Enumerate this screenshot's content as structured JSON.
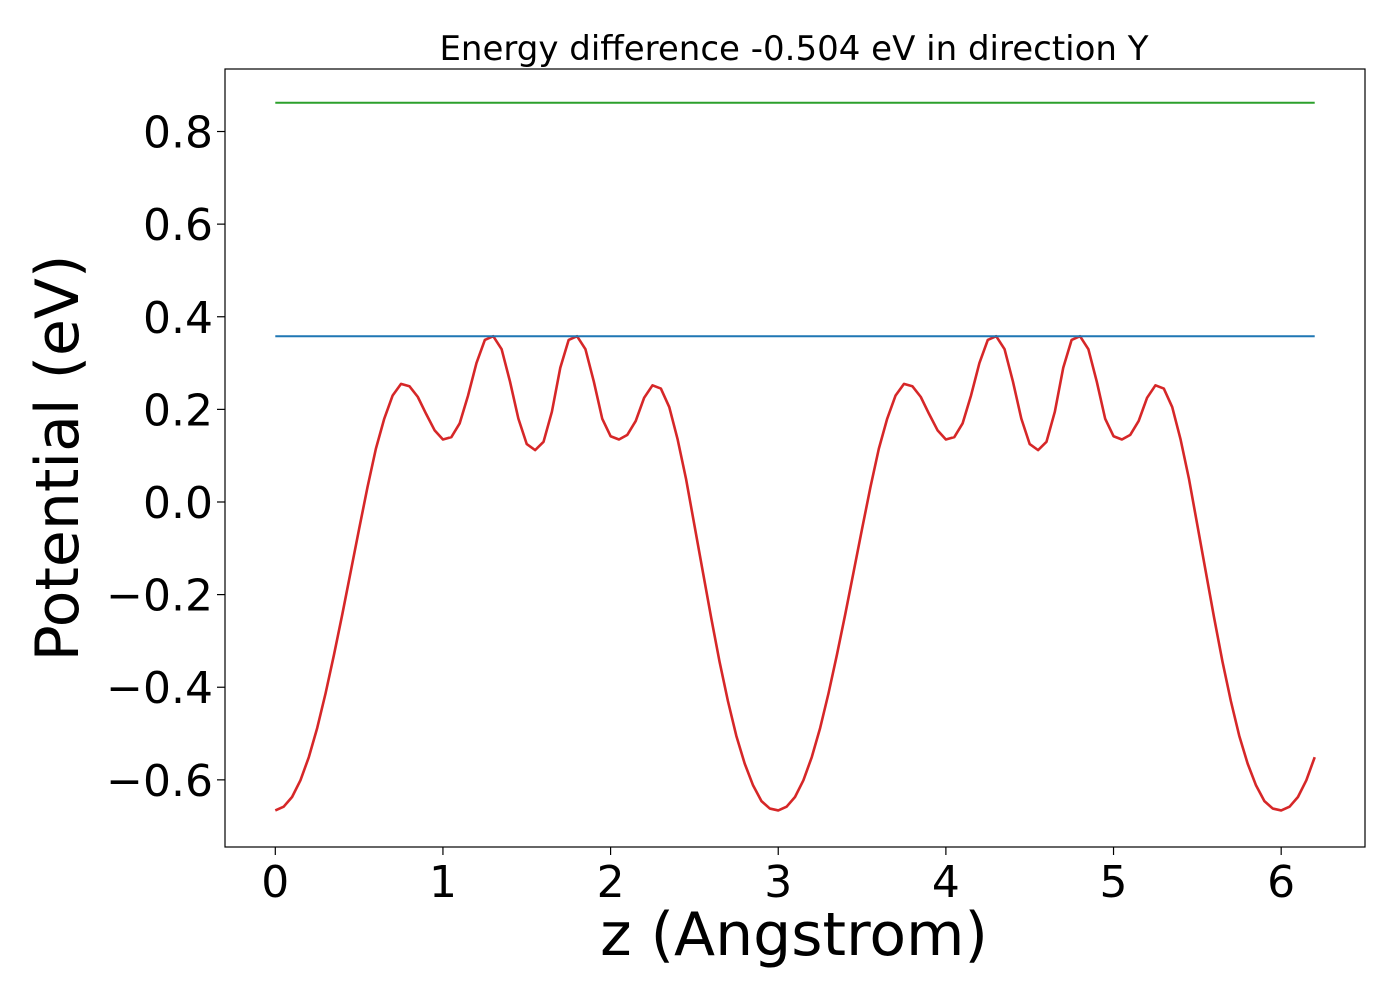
{
  "chart_data": {
    "type": "line",
    "title": "Energy difference -0.504 eV in direction Y",
    "xlabel": "z (Angstrom)",
    "ylabel": "Potential (eV)",
    "xlim": [
      -0.3,
      6.5
    ],
    "ylim": [
      -0.745,
      0.935
    ],
    "xticks": [
      0,
      1,
      2,
      3,
      4,
      5,
      6
    ],
    "yticks": [
      -0.6,
      -0.4,
      -0.2,
      0.0,
      0.2,
      0.4,
      0.6,
      0.8
    ],
    "ytick_labels": [
      "−0.6",
      "−0.4",
      "−0.2",
      "0.0",
      "0.2",
      "0.4",
      "0.6",
      "0.8"
    ],
    "grid": false,
    "series": [
      {
        "name": "potential",
        "color": "#d62728",
        "x": [
          0.0,
          0.05,
          0.1,
          0.15,
          0.2,
          0.25,
          0.3,
          0.35,
          0.4,
          0.45,
          0.5,
          0.55,
          0.6,
          0.65,
          0.7,
          0.75,
          0.8,
          0.85,
          0.9,
          0.95,
          1.0,
          1.05,
          1.1,
          1.15,
          1.2,
          1.25,
          1.3,
          1.35,
          1.4,
          1.45,
          1.5,
          1.55,
          1.6,
          1.65,
          1.7,
          1.75,
          1.8,
          1.85,
          1.9,
          1.95,
          2.0,
          2.05,
          2.1,
          2.15,
          2.2,
          2.25,
          2.3,
          2.35,
          2.4,
          2.45,
          2.5,
          2.55,
          2.6,
          2.65,
          2.7,
          2.75,
          2.8,
          2.85,
          2.9,
          2.95,
          3.0,
          3.05,
          3.1,
          3.15,
          3.2,
          3.25,
          3.3,
          3.35,
          3.4,
          3.45,
          3.5,
          3.55,
          3.6,
          3.65,
          3.7,
          3.75,
          3.8,
          3.85,
          3.9,
          3.95,
          4.0,
          4.05,
          4.1,
          4.15,
          4.2,
          4.25,
          4.3,
          4.35,
          4.4,
          4.45,
          4.5,
          4.55,
          4.6,
          4.65,
          4.7,
          4.75,
          4.8,
          4.85,
          4.9,
          4.95,
          5.0,
          5.05,
          5.1,
          5.15,
          5.2,
          5.25,
          5.3,
          5.35,
          5.4,
          5.45,
          5.5,
          5.55,
          5.6,
          5.65,
          5.7,
          5.75,
          5.8,
          5.85,
          5.9,
          5.95,
          6.0,
          6.05,
          6.1,
          6.15,
          6.2
        ],
        "y": [
          -0.666,
          -0.658,
          -0.637,
          -0.601,
          -0.551,
          -0.488,
          -0.413,
          -0.33,
          -0.242,
          -0.15,
          -0.058,
          0.032,
          0.115,
          0.18,
          0.23,
          0.255,
          0.25,
          0.227,
          0.19,
          0.155,
          0.135,
          0.14,
          0.17,
          0.23,
          0.3,
          0.35,
          0.358,
          0.33,
          0.26,
          0.18,
          0.125,
          0.112,
          0.13,
          0.195,
          0.29,
          0.35,
          0.358,
          0.33,
          0.26,
          0.18,
          0.142,
          0.135,
          0.145,
          0.175,
          0.225,
          0.252,
          0.245,
          0.205,
          0.135,
          0.05,
          -0.05,
          -0.15,
          -0.25,
          -0.345,
          -0.43,
          -0.505,
          -0.565,
          -0.612,
          -0.646,
          -0.662,
          -0.666,
          -0.658,
          -0.637,
          -0.601,
          -0.551,
          -0.488,
          -0.413,
          -0.33,
          -0.242,
          -0.15,
          -0.058,
          0.032,
          0.115,
          0.18,
          0.23,
          0.255,
          0.25,
          0.227,
          0.19,
          0.155,
          0.135,
          0.14,
          0.17,
          0.23,
          0.3,
          0.35,
          0.358,
          0.33,
          0.26,
          0.18,
          0.125,
          0.112,
          0.13,
          0.195,
          0.29,
          0.35,
          0.358,
          0.33,
          0.26,
          0.18,
          0.142,
          0.135,
          0.145,
          0.175,
          0.225,
          0.252,
          0.245,
          0.205,
          0.135,
          0.05,
          -0.05,
          -0.15,
          -0.25,
          -0.345,
          -0.43,
          -0.505,
          -0.565,
          -0.612,
          -0.646,
          -0.662,
          -0.666,
          -0.658,
          -0.637,
          -0.601,
          -0.551
        ]
      },
      {
        "name": "barrier-max",
        "color": "#1f77b4",
        "x": [
          0.0,
          6.2
        ],
        "y": [
          0.358,
          0.358
        ]
      },
      {
        "name": "upper-level",
        "color": "#2ca02c",
        "x": [
          0.0,
          6.2
        ],
        "y": [
          0.862,
          0.862
        ]
      }
    ]
  }
}
